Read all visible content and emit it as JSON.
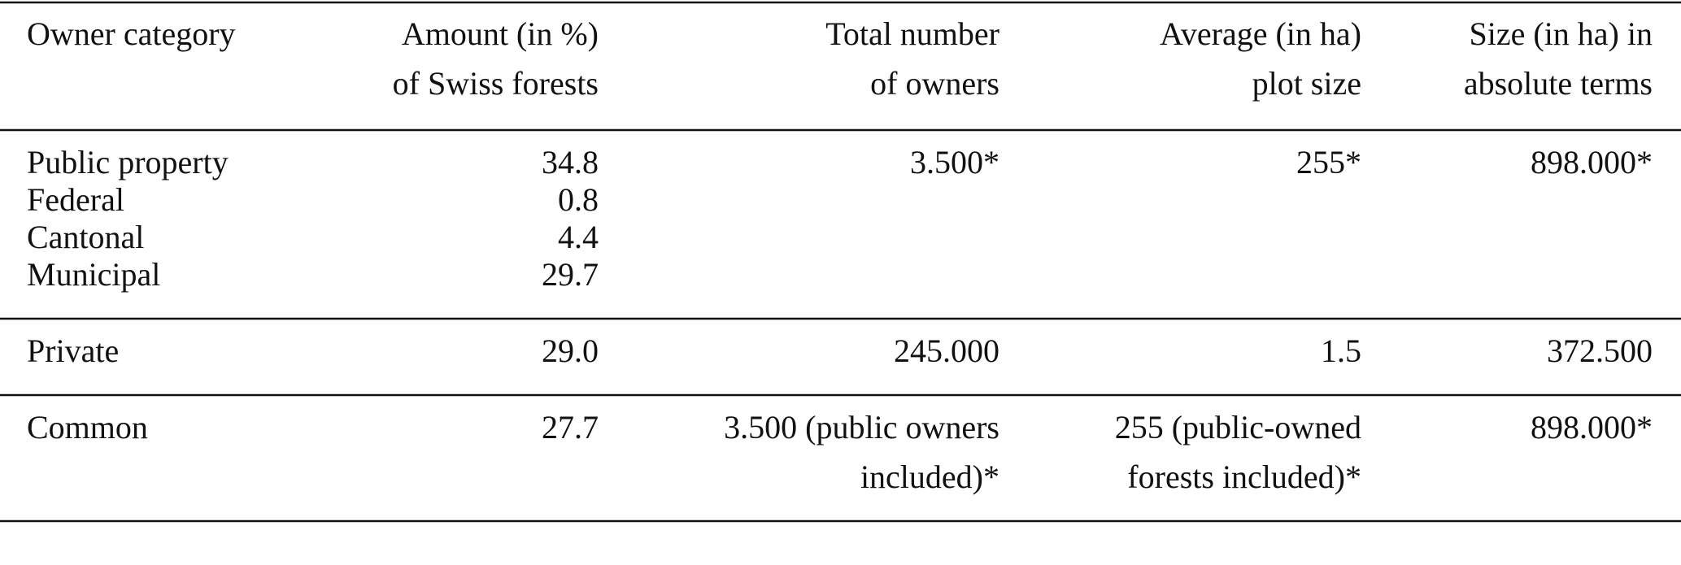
{
  "table": {
    "header": [
      [
        "Owner category"
      ],
      [
        "Amount (in %)",
        "of Swiss forests"
      ],
      [
        "Total number",
        "of owners"
      ],
      [
        "Average (in ha)",
        "plot size"
      ],
      [
        "Size (in ha) in",
        "absolute terms"
      ]
    ],
    "groups": [
      [
        [
          [
            "Public property"
          ],
          [
            "34.8"
          ],
          [
            "3.500*"
          ],
          [
            "255*"
          ],
          [
            "898.000*"
          ]
        ],
        [
          [
            "Federal"
          ],
          [
            "0.8"
          ]
        ],
        [
          [
            "Cantonal"
          ],
          [
            "4.4"
          ]
        ],
        [
          [
            "Municipal"
          ],
          [
            "29.7"
          ]
        ]
      ],
      [
        [
          [
            "Private"
          ],
          [
            "29.0"
          ],
          [
            "245.000"
          ],
          [
            "1.5"
          ],
          [
            "372.500"
          ]
        ]
      ],
      [
        [
          [
            "Common"
          ],
          [
            "27.7"
          ],
          [
            "3.500 (public owners",
            "included)*"
          ],
          [
            "255 (public-owned",
            "forests included)*"
          ],
          [
            "898.000*"
          ]
        ]
      ]
    ]
  }
}
